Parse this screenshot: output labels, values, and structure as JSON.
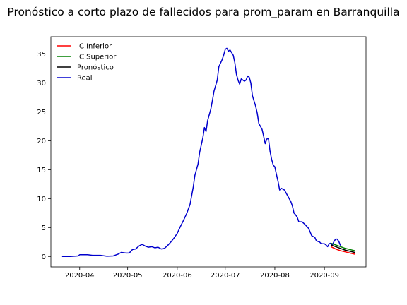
{
  "chart_data": {
    "type": "line",
    "title": "Pronóstico a corto plazo de fallecidos para prom_param en Barranquilla",
    "xlabel": "",
    "ylabel": "",
    "x_range": [
      "2020-03-14",
      "2020-09-27"
    ],
    "ylim": [
      -1.8,
      38.0
    ],
    "x_ticks": [
      {
        "date": "2020-04-01",
        "label": "2020-04"
      },
      {
        "date": "2020-05-01",
        "label": "2020-05"
      },
      {
        "date": "2020-06-01",
        "label": "2020-06"
      },
      {
        "date": "2020-07-01",
        "label": "2020-07"
      },
      {
        "date": "2020-08-01",
        "label": "2020-08"
      },
      {
        "date": "2020-09-01",
        "label": "2020-09"
      }
    ],
    "y_ticks": [
      0,
      5,
      10,
      15,
      20,
      25,
      30,
      35
    ],
    "grid": false,
    "legend_position": "top-left",
    "series": [
      {
        "name": "IC Inferior",
        "color": "#ff0000",
        "points": [
          [
            "2020-09-05",
            1.7
          ],
          [
            "2020-09-08",
            1.3
          ],
          [
            "2020-09-11",
            1.0
          ],
          [
            "2020-09-14",
            0.8
          ],
          [
            "2020-09-17",
            0.6
          ],
          [
            "2020-09-20",
            0.4
          ]
        ]
      },
      {
        "name": "IC Superior",
        "color": "#008000",
        "points": [
          [
            "2020-09-05",
            2.3
          ],
          [
            "2020-09-08",
            2.0
          ],
          [
            "2020-09-11",
            1.7
          ],
          [
            "2020-09-14",
            1.4
          ],
          [
            "2020-09-17",
            1.2
          ],
          [
            "2020-09-20",
            1.0
          ]
        ]
      },
      {
        "name": "Pronóstico",
        "color": "#000000",
        "points": [
          [
            "2020-09-05",
            2.0
          ],
          [
            "2020-09-08",
            1.7
          ],
          [
            "2020-09-11",
            1.4
          ],
          [
            "2020-09-14",
            1.1
          ],
          [
            "2020-09-17",
            0.9
          ],
          [
            "2020-09-20",
            0.7
          ]
        ]
      },
      {
        "name": "Real",
        "color": "#0000cd",
        "points": [
          [
            "2020-03-21",
            0.0
          ],
          [
            "2020-03-26",
            0.0
          ],
          [
            "2020-03-31",
            0.1
          ],
          [
            "2020-04-01",
            0.3
          ],
          [
            "2020-04-06",
            0.3
          ],
          [
            "2020-04-09",
            0.2
          ],
          [
            "2020-04-14",
            0.2
          ],
          [
            "2020-04-18",
            0.05
          ],
          [
            "2020-04-22",
            0.1
          ],
          [
            "2020-04-25",
            0.4
          ],
          [
            "2020-04-27",
            0.7
          ],
          [
            "2020-04-30",
            0.6
          ],
          [
            "2020-05-02",
            0.6
          ],
          [
            "2020-05-04",
            1.2
          ],
          [
            "2020-05-06",
            1.3
          ],
          [
            "2020-05-08",
            1.8
          ],
          [
            "2020-05-10",
            2.1
          ],
          [
            "2020-05-12",
            1.8
          ],
          [
            "2020-05-14",
            1.6
          ],
          [
            "2020-05-16",
            1.7
          ],
          [
            "2020-05-18",
            1.5
          ],
          [
            "2020-05-20",
            1.6
          ],
          [
            "2020-05-22",
            1.3
          ],
          [
            "2020-05-24",
            1.4
          ],
          [
            "2020-05-26",
            1.9
          ],
          [
            "2020-05-28",
            2.5
          ],
          [
            "2020-05-30",
            3.2
          ],
          [
            "2020-06-01",
            4.0
          ],
          [
            "2020-06-03",
            5.2
          ],
          [
            "2020-06-05",
            6.3
          ],
          [
            "2020-06-07",
            7.5
          ],
          [
            "2020-06-09",
            9.0
          ],
          [
            "2020-06-11",
            12.0
          ],
          [
            "2020-06-12",
            14.0
          ],
          [
            "2020-06-14",
            16.0
          ],
          [
            "2020-06-15",
            18.0
          ],
          [
            "2020-06-17",
            20.5
          ],
          [
            "2020-06-18",
            22.3
          ],
          [
            "2020-06-19",
            21.6
          ],
          [
            "2020-06-20",
            23.5
          ],
          [
            "2020-06-22",
            25.5
          ],
          [
            "2020-06-23",
            27.0
          ],
          [
            "2020-06-24",
            28.6
          ],
          [
            "2020-06-26",
            30.5
          ],
          [
            "2020-06-27",
            32.8
          ],
          [
            "2020-06-29",
            34.0
          ],
          [
            "2020-06-30",
            34.8
          ],
          [
            "2020-07-01",
            35.8
          ],
          [
            "2020-07-02",
            36.0
          ],
          [
            "2020-07-03",
            35.5
          ],
          [
            "2020-07-04",
            35.7
          ],
          [
            "2020-07-06",
            34.8
          ],
          [
            "2020-07-07",
            33.5
          ],
          [
            "2020-07-08",
            31.5
          ],
          [
            "2020-07-09",
            30.5
          ],
          [
            "2020-07-10",
            29.8
          ],
          [
            "2020-07-11",
            30.7
          ],
          [
            "2020-07-13",
            30.3
          ],
          [
            "2020-07-14",
            30.5
          ],
          [
            "2020-07-15",
            31.2
          ],
          [
            "2020-07-16",
            31.0
          ],
          [
            "2020-07-17",
            30.0
          ],
          [
            "2020-07-18",
            27.8
          ],
          [
            "2020-07-20",
            26.0
          ],
          [
            "2020-07-21",
            24.8
          ],
          [
            "2020-07-22",
            23.0
          ],
          [
            "2020-07-24",
            22.0
          ],
          [
            "2020-07-25",
            20.8
          ],
          [
            "2020-07-26",
            19.5
          ],
          [
            "2020-07-27",
            20.3
          ],
          [
            "2020-07-28",
            20.4
          ],
          [
            "2020-07-29",
            18.2
          ],
          [
            "2020-07-30",
            16.8
          ],
          [
            "2020-07-31",
            15.8
          ],
          [
            "2020-08-01",
            15.5
          ],
          [
            "2020-08-02",
            14.2
          ],
          [
            "2020-08-03",
            13.0
          ],
          [
            "2020-08-04",
            11.5
          ],
          [
            "2020-08-05",
            11.8
          ],
          [
            "2020-08-07",
            11.5
          ],
          [
            "2020-08-08",
            11.0
          ],
          [
            "2020-08-10",
            10.0
          ],
          [
            "2020-08-11",
            9.5
          ],
          [
            "2020-08-12",
            8.7
          ],
          [
            "2020-08-13",
            7.5
          ],
          [
            "2020-08-14",
            7.2
          ],
          [
            "2020-08-15",
            6.8
          ],
          [
            "2020-08-16",
            6.0
          ],
          [
            "2020-08-18",
            6.0
          ],
          [
            "2020-08-20",
            5.5
          ],
          [
            "2020-08-22",
            4.9
          ],
          [
            "2020-08-23",
            4.3
          ],
          [
            "2020-08-24",
            3.6
          ],
          [
            "2020-08-26",
            3.3
          ],
          [
            "2020-08-27",
            2.7
          ],
          [
            "2020-08-29",
            2.5
          ],
          [
            "2020-08-30",
            2.2
          ],
          [
            "2020-09-01",
            2.2
          ],
          [
            "2020-09-02",
            2.0
          ],
          [
            "2020-09-03",
            1.7
          ],
          [
            "2020-09-04",
            2.2
          ],
          [
            "2020-09-05",
            2.3
          ],
          [
            "2020-09-06",
            2.0
          ],
          [
            "2020-09-07",
            2.6
          ],
          [
            "2020-09-08",
            3.0
          ],
          [
            "2020-09-09",
            3.0
          ],
          [
            "2020-09-10",
            2.6
          ],
          [
            "2020-09-11",
            1.9
          ]
        ]
      }
    ]
  }
}
